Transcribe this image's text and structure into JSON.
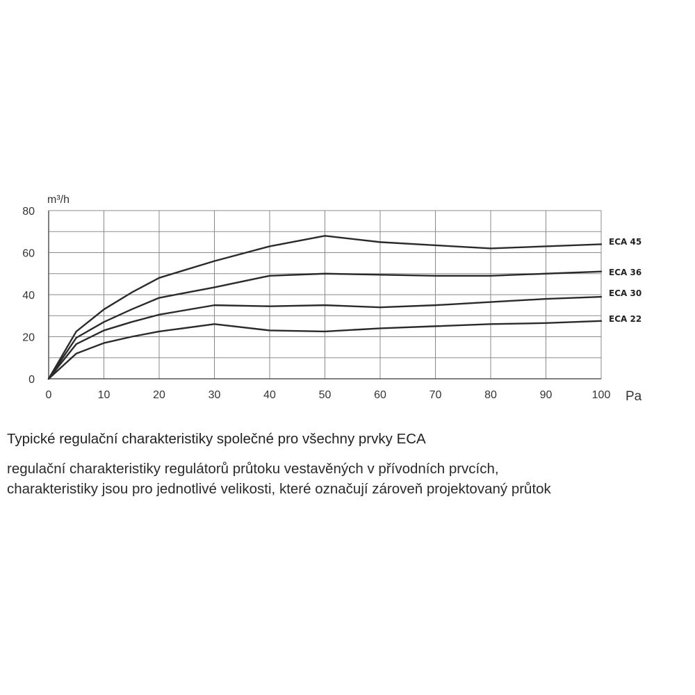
{
  "chart_data": {
    "type": "line",
    "ylabel": "m³/h",
    "xlabel": "Pa",
    "xlim": [
      0,
      100
    ],
    "ylim": [
      0,
      80
    ],
    "grid": true,
    "x_ticks": [
      "0",
      "10",
      "20",
      "30",
      "40",
      "50",
      "60",
      "70",
      "80",
      "90",
      "100"
    ],
    "y_ticks": [
      "0",
      "20",
      "40",
      "60",
      "80"
    ],
    "series": [
      {
        "name": "ECA 45",
        "x": [
          0,
          5,
          10,
          15,
          20,
          30,
          40,
          50,
          60,
          70,
          80,
          90,
          100
        ],
        "values": [
          0,
          22.5,
          33,
          41,
          48,
          56,
          63,
          68,
          65,
          63.5,
          62,
          63,
          64
        ]
      },
      {
        "name": "ECA 36",
        "x": [
          0,
          5,
          10,
          15,
          20,
          30,
          40,
          50,
          60,
          70,
          80,
          90,
          100
        ],
        "values": [
          0,
          19.5,
          27,
          33,
          38.5,
          43.5,
          49,
          50,
          49.5,
          49,
          49,
          50,
          51
        ]
      },
      {
        "name": "ECA 30",
        "x": [
          0,
          5,
          10,
          15,
          20,
          30,
          40,
          50,
          60,
          70,
          80,
          90,
          100
        ],
        "values": [
          0,
          16.5,
          23,
          27,
          30.5,
          35,
          34.5,
          35,
          34,
          35,
          36.5,
          38,
          39
        ]
      },
      {
        "name": "ECA 22",
        "x": [
          0,
          5,
          10,
          15,
          20,
          30,
          40,
          50,
          60,
          70,
          80,
          90,
          100
        ],
        "values": [
          0,
          12,
          17,
          20,
          22.5,
          26,
          23,
          22.5,
          24,
          25,
          26,
          26.5,
          27.5
        ]
      }
    ]
  },
  "caption": {
    "title": "Typické regulační charakteristiky společné pro všechny prvky ECA",
    "lines": [
      "regulační charakteristiky regulátorů průtoku vestavěných v přívodních prvcích,",
      "charakteristiky jsou pro jednotlivé velikosti, které označují zároveň projektovaný průtok"
    ]
  }
}
